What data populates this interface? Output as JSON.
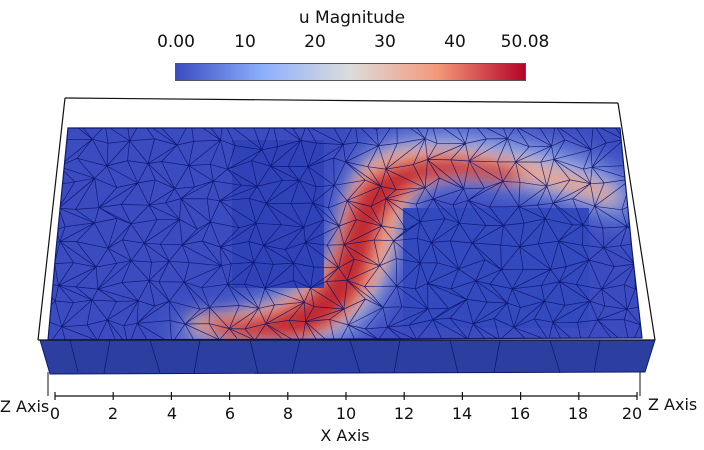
{
  "colorbar": {
    "title": "u Magnitude",
    "ticks": [
      "0.00",
      "10",
      "20",
      "30",
      "40",
      "50.08"
    ],
    "colors": [
      "#3b4cc0",
      "#8db0fe",
      "#dddcdc",
      "#f4987a",
      "#b40426"
    ]
  },
  "axes": {
    "x_title": "X Axis",
    "x_ticks": [
      "0",
      "2",
      "4",
      "6",
      "8",
      "10",
      "12",
      "14",
      "16",
      "18",
      "20"
    ],
    "z_left": "Z Axis",
    "z_right": "Z Axis"
  }
}
